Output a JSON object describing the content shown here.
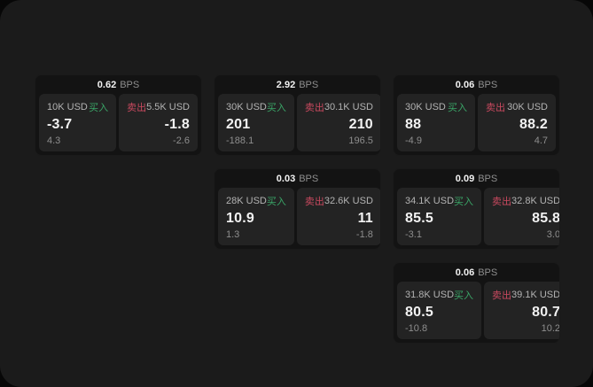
{
  "colors": {
    "backdrop": "#070707",
    "screen_bg": "#1b1b1b",
    "card_bg": "#131313",
    "panel_bg": "#232323",
    "buy_green": "#3aa567",
    "sell_red": "#c9495f",
    "text_primary": "#f2f2f2",
    "text_secondary": "#b3b3b3",
    "text_muted": "#8e8e8e"
  },
  "labels": {
    "bps": "BPS",
    "buy": "买入",
    "sell": "卖出"
  },
  "cards": [
    {
      "col": 1,
      "row": 1,
      "bps": "0.62",
      "buy": {
        "amount": "10K USD",
        "value": "-3.7",
        "sub": "4.3"
      },
      "sell": {
        "amount": "5.5K USD",
        "value": "-1.8",
        "sub": "-2.6"
      }
    },
    {
      "col": 2,
      "row": 1,
      "bps": "2.92",
      "buy": {
        "amount": "30K USD",
        "value": "201",
        "sub": "-188.1"
      },
      "sell": {
        "amount": "30.1K USD",
        "value": "210",
        "sub": "196.5"
      }
    },
    {
      "col": 3,
      "row": 1,
      "bps": "0.06",
      "buy": {
        "amount": "30K USD",
        "value": "88",
        "sub": "-4.9"
      },
      "sell": {
        "amount": "30K USD",
        "value": "88.2",
        "sub": "4.7"
      }
    },
    {
      "col": 2,
      "row": 2,
      "bps": "0.03",
      "buy": {
        "amount": "28K USD",
        "value": "10.9",
        "sub": "1.3"
      },
      "sell": {
        "amount": "32.6K USD",
        "value": "11",
        "sub": "-1.8"
      }
    },
    {
      "col": 3,
      "row": 2,
      "bps": "0.09",
      "buy": {
        "amount": "34.1K USD",
        "value": "85.5",
        "sub": "-3.1"
      },
      "sell": {
        "amount": "32.8K USD",
        "value": "85.8",
        "sub": "3.0"
      }
    },
    {
      "col": 3,
      "row": 3,
      "bps": "0.06",
      "buy": {
        "amount": "31.8K USD",
        "value": "80.5",
        "sub": "-10.8"
      },
      "sell": {
        "amount": "39.1K USD",
        "value": "80.7",
        "sub": "10.2"
      }
    }
  ]
}
